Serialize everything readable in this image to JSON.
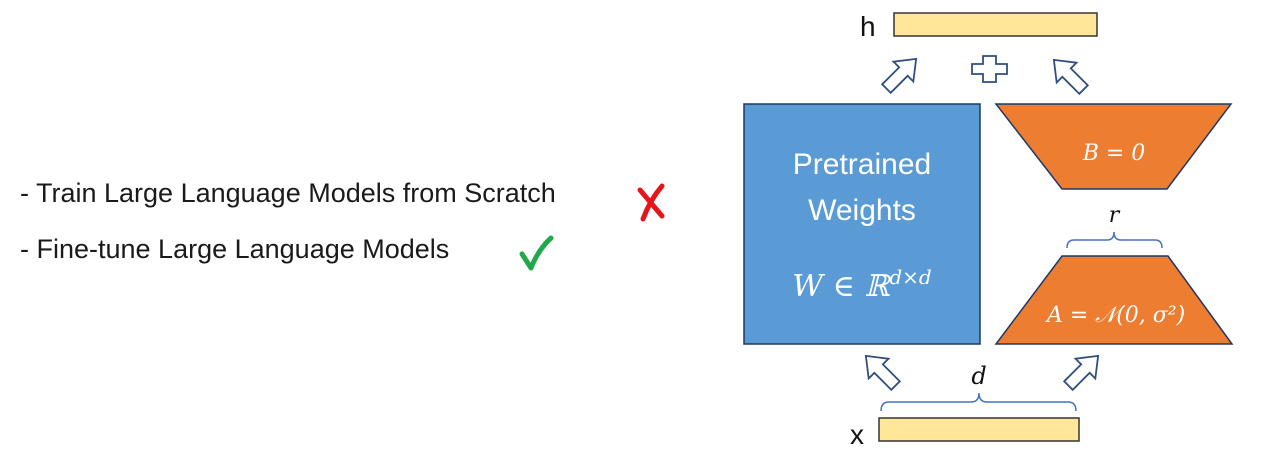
{
  "list": {
    "items": [
      {
        "text": "- Train Large Language Models from Scratch",
        "mark": "✗",
        "mark_icon": "cross-mark-icon",
        "mark_color": "#e8141b"
      },
      {
        "text": "- Fine-tune Large Language Models",
        "mark": "✓",
        "mark_icon": "check-mark-icon",
        "mark_color": "#22a84a"
      }
    ]
  },
  "diagram": {
    "output_label": "h",
    "input_label": "x",
    "pretrained_title_line1": "Pretrained",
    "pretrained_title_line2": "Weights",
    "pretrained_formula": "W ∈ ℝ",
    "pretrained_formula_sup": "d×d",
    "b_label": "B = 0",
    "a_label": "A = 𝒩(0, σ²)",
    "rank_label": "r",
    "dim_label": "d",
    "plus_icon": "plus-icon",
    "colors": {
      "vector_fill": "#ffe699",
      "vector_stroke": "#333333",
      "pretrained_fill": "#5b9bd5",
      "pretrained_stroke": "#1f3864",
      "adapter_fill": "#ed7d31",
      "adapter_stroke": "#1f3864",
      "arrow_stroke": "#2f4f7f",
      "brace_stroke": "#4472c4"
    }
  }
}
